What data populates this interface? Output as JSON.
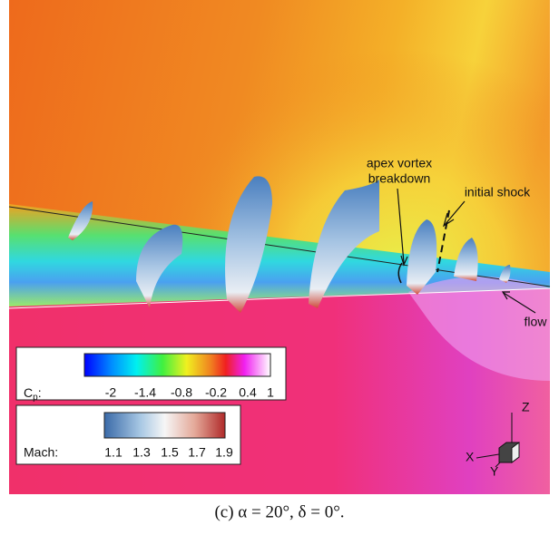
{
  "annotations": {
    "apex_vortex": [
      "apex vortex",
      "breakdown"
    ],
    "initial_shock": "initial shock",
    "flow": "flow"
  },
  "cp_legend": {
    "label": {
      "main": "C",
      "sub": "p",
      "suffix": ":"
    },
    "ticks": [
      -2,
      -1.4,
      -0.8,
      -0.2,
      0.4,
      1
    ]
  },
  "mach_legend": {
    "label": "Mach:",
    "ticks": [
      1.1,
      1.3,
      1.5,
      1.7,
      1.9
    ]
  },
  "axes_triad": {
    "z": "Z",
    "x": "X",
    "y": "Y"
  },
  "caption": "(c) α = 20°, δ = 0°."
}
